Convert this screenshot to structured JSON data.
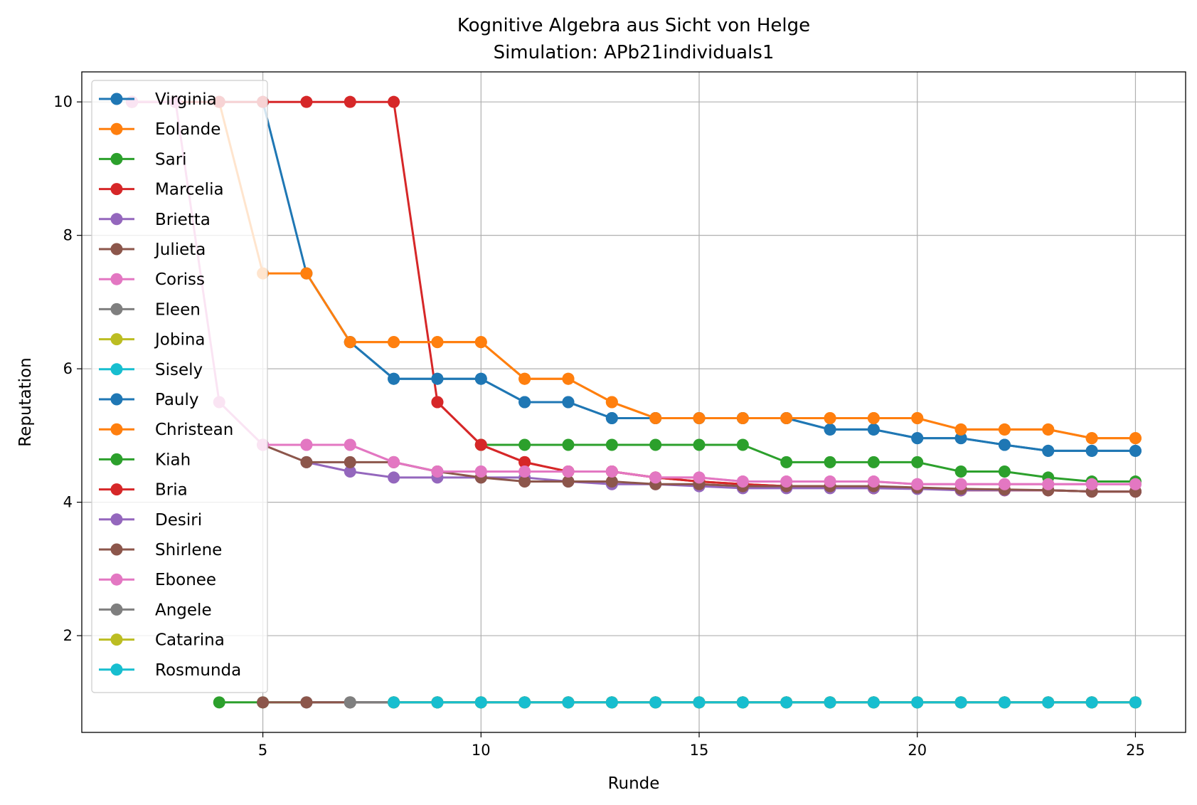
{
  "chart_data": {
    "type": "line",
    "title": "Kognitive Algebra aus Sicht von Helge",
    "subtitle": "Simulation: APb21individuals1",
    "xlabel": "Runde",
    "ylabel": "Reputation",
    "xlim": [
      0.85,
      26.15
    ],
    "ylim": [
      0.55,
      10.45
    ],
    "xticks": [
      5,
      10,
      15,
      20,
      25
    ],
    "yticks": [
      2,
      4,
      6,
      8,
      10
    ],
    "grid": true,
    "legend_position": "upper-left",
    "series": [
      {
        "name": "Virginia",
        "color": "#1f77b4",
        "x": [
          2,
          3,
          4,
          5,
          6,
          7,
          8,
          9,
          10,
          11,
          12,
          13,
          14,
          15,
          16,
          17,
          18,
          19,
          20,
          21,
          22,
          23,
          24,
          25
        ],
        "y": [
          10,
          10,
          10,
          10,
          7.43,
          6.4,
          5.85,
          5.85,
          5.85,
          5.5,
          5.5,
          5.26,
          5.26,
          5.26,
          5.26,
          5.26,
          5.09,
          5.09,
          4.96,
          4.96,
          4.86,
          4.77,
          4.77,
          4.77
        ]
      },
      {
        "name": "Eolande",
        "color": "#ff7f0e",
        "x": [
          2,
          3,
          4,
          5,
          6,
          7,
          8,
          9,
          10,
          11,
          12,
          13,
          14,
          15,
          16,
          17,
          18,
          19,
          20,
          21,
          22,
          23,
          24,
          25
        ],
        "y": [
          10,
          10,
          10,
          7.43,
          7.43,
          6.4,
          6.4,
          6.4,
          6.4,
          5.85,
          5.85,
          5.5,
          5.26,
          5.26,
          5.26,
          5.26,
          5.26,
          5.26,
          5.26,
          5.09,
          5.09,
          5.09,
          4.96,
          4.96
        ]
      },
      {
        "name": "Sari",
        "color": "#2ca02c",
        "x": [
          4,
          5,
          6,
          7,
          8,
          9,
          10,
          11,
          12,
          13,
          14,
          15,
          16,
          17,
          18,
          19,
          20,
          21,
          22,
          23,
          24,
          25
        ],
        "y": [
          1,
          1,
          1,
          1,
          1,
          1,
          1,
          1,
          1,
          1,
          1,
          1,
          1,
          1,
          1,
          1,
          1,
          1,
          1,
          1,
          1,
          1
        ]
      },
      {
        "name": "Marcelia",
        "color": "#d62728",
        "x": [
          2,
          3,
          4,
          5,
          6,
          7,
          8,
          9,
          10,
          11,
          12,
          13,
          14,
          15,
          16,
          17,
          18,
          19,
          20,
          21,
          22,
          23,
          24,
          25
        ],
        "y": [
          10,
          10,
          10,
          10,
          10,
          10,
          10,
          5.5,
          4.86,
          4.6,
          4.46,
          4.46,
          4.37,
          4.31,
          4.27,
          4.24,
          4.24,
          4.21,
          4.21,
          4.18,
          4.18,
          4.18,
          4.16,
          4.16
        ]
      },
      {
        "name": "Brietta",
        "color": "#9467bd",
        "x": [
          6,
          7,
          8,
          9,
          10,
          11,
          12,
          13,
          14,
          15,
          16,
          17,
          18,
          19,
          20,
          21,
          22,
          23,
          24,
          25
        ],
        "y": [
          1,
          1,
          1,
          1,
          1,
          1,
          1,
          1,
          1,
          1,
          1,
          1,
          1,
          1,
          1,
          1,
          1,
          1,
          1,
          1
        ]
      },
      {
        "name": "Julieta",
        "color": "#8c564b",
        "x": [
          5,
          6,
          7,
          8,
          9,
          10,
          11,
          12,
          13,
          14,
          15,
          16,
          17,
          18,
          19,
          20,
          21,
          22,
          23,
          24,
          25
        ],
        "y": [
          1,
          1,
          1,
          1,
          1,
          1,
          1,
          1,
          1,
          1,
          1,
          1,
          1,
          1,
          1,
          1,
          1,
          1,
          1,
          1,
          1
        ]
      },
      {
        "name": "Coriss",
        "color": "#e377c2",
        "x": [
          2,
          3,
          4,
          5,
          6,
          7,
          8,
          9,
          10,
          11,
          12,
          13,
          14,
          15,
          16,
          17,
          18,
          19,
          20,
          21,
          22,
          23,
          24,
          25
        ],
        "y": [
          10,
          10,
          5.5,
          4.86,
          4.86,
          4.86,
          4.6,
          4.46,
          4.46,
          4.46,
          4.46,
          4.46,
          4.37,
          4.37,
          4.31,
          4.31,
          4.31,
          4.31,
          4.27,
          4.27,
          4.27,
          4.27,
          4.27,
          4.27
        ]
      },
      {
        "name": "Eleen",
        "color": "#7f7f7f",
        "x": [
          7,
          8,
          9,
          10,
          11,
          12,
          13,
          14,
          15,
          16,
          17,
          18,
          19,
          20,
          21,
          22,
          23,
          24,
          25
        ],
        "y": [
          1,
          1,
          1,
          1,
          1,
          1,
          1,
          1,
          1,
          1,
          1,
          1,
          1,
          1,
          1,
          1,
          1,
          1,
          1
        ]
      },
      {
        "name": "Jobina",
        "color": "#bcbd22",
        "x": [
          8,
          9,
          10,
          11,
          12,
          13,
          14,
          15,
          16,
          17,
          18,
          19,
          20,
          21,
          22,
          23,
          24,
          25
        ],
        "y": [
          1,
          1,
          1,
          1,
          1,
          1,
          1,
          1,
          1,
          1,
          1,
          1,
          1,
          1,
          1,
          1,
          1,
          1
        ]
      },
      {
        "name": "Sisely",
        "color": "#17becf",
        "x": [
          8,
          9,
          10,
          11,
          12,
          13,
          14,
          15,
          16,
          17,
          18,
          19,
          20,
          21,
          22,
          23,
          24,
          25
        ],
        "y": [
          1,
          1,
          1,
          1,
          1,
          1,
          1,
          1,
          1,
          1,
          1,
          1,
          1,
          1,
          1,
          1,
          1,
          1
        ]
      },
      {
        "name": "Pauly",
        "color": "#1f77b4",
        "x": [
          7,
          8,
          9,
          10,
          11,
          12,
          13,
          14,
          15,
          16,
          17,
          18,
          19,
          20,
          21,
          22,
          23,
          24,
          25
        ],
        "y": [
          6.4,
          5.85,
          5.85,
          5.85,
          5.5,
          5.5,
          5.26,
          5.26,
          5.26,
          5.26,
          5.26,
          5.09,
          5.09,
          4.96,
          4.96,
          4.86,
          4.77,
          4.77,
          4.77
        ]
      },
      {
        "name": "Christean",
        "color": "#ff7f0e",
        "x": [
          7,
          8,
          9,
          10,
          11,
          12,
          13,
          14,
          15,
          16,
          17,
          18,
          19,
          20,
          21,
          22,
          23,
          24,
          25
        ],
        "y": [
          6.4,
          6.4,
          6.4,
          6.4,
          5.85,
          5.85,
          5.5,
          5.26,
          5.26,
          5.26,
          5.26,
          5.26,
          5.26,
          5.26,
          5.09,
          5.09,
          5.09,
          4.96,
          4.96
        ]
      },
      {
        "name": "Kiah",
        "color": "#2ca02c",
        "x": [
          10,
          11,
          12,
          13,
          14,
          15,
          16,
          17,
          18,
          19,
          20,
          21,
          22,
          23,
          24,
          25
        ],
        "y": [
          4.86,
          4.86,
          4.86,
          4.86,
          4.86,
          4.86,
          4.86,
          4.6,
          4.6,
          4.6,
          4.6,
          4.46,
          4.46,
          4.37,
          4.31,
          4.31
        ]
      },
      {
        "name": "Bria",
        "color": "#d62728",
        "x": [
          9,
          10,
          11,
          12,
          13,
          14,
          15,
          16,
          17,
          18,
          19,
          20,
          21,
          22,
          23,
          24,
          25
        ],
        "y": [
          5.5,
          4.86,
          4.6,
          4.46,
          4.46,
          4.37,
          4.31,
          4.27,
          4.24,
          4.24,
          4.21,
          4.21,
          4.18,
          4.18,
          4.18,
          4.16,
          4.16
        ]
      },
      {
        "name": "Desiri",
        "color": "#9467bd",
        "x": [
          6,
          7,
          8,
          9,
          10,
          11,
          12,
          13,
          14,
          15,
          16,
          17,
          18,
          19,
          20,
          21,
          22,
          23,
          24,
          25
        ],
        "y": [
          4.6,
          4.46,
          4.37,
          4.37,
          4.37,
          4.37,
          4.31,
          4.27,
          4.27,
          4.24,
          4.21,
          4.21,
          4.21,
          4.21,
          4.2,
          4.18,
          4.18,
          4.18,
          4.16,
          4.16
        ]
      },
      {
        "name": "Shirlene",
        "color": "#8c564b",
        "x": [
          5,
          6,
          7,
          8,
          9,
          10,
          11,
          12,
          13,
          14,
          15,
          16,
          17,
          18,
          19,
          20,
          21,
          22,
          23,
          24,
          25
        ],
        "y": [
          4.86,
          4.6,
          4.6,
          4.6,
          4.46,
          4.37,
          4.31,
          4.31,
          4.31,
          4.27,
          4.27,
          4.24,
          4.24,
          4.24,
          4.24,
          4.22,
          4.2,
          4.19,
          4.18,
          4.16,
          4.16
        ]
      },
      {
        "name": "Ebonee",
        "color": "#e377c2",
        "x": [
          5,
          6,
          7,
          8,
          9,
          10,
          11,
          12,
          13,
          14,
          15,
          16,
          17,
          18,
          19,
          20,
          21,
          22,
          23,
          24,
          25
        ],
        "y": [
          4.86,
          4.86,
          4.86,
          4.6,
          4.46,
          4.46,
          4.46,
          4.46,
          4.46,
          4.37,
          4.37,
          4.31,
          4.31,
          4.31,
          4.31,
          4.27,
          4.27,
          4.27,
          4.27,
          4.27,
          4.27
        ]
      },
      {
        "name": "Angele",
        "color": "#7f7f7f",
        "x": [
          8,
          9,
          10,
          11,
          12,
          13,
          14,
          15,
          16,
          17,
          18,
          19,
          20,
          21,
          22,
          23,
          24,
          25
        ],
        "y": [
          1,
          1,
          1,
          1,
          1,
          1,
          1,
          1,
          1,
          1,
          1,
          1,
          1,
          1,
          1,
          1,
          1,
          1
        ]
      },
      {
        "name": "Catarina",
        "color": "#bcbd22",
        "x": [
          8,
          9,
          10,
          11,
          12,
          13,
          14,
          15,
          16,
          17,
          18,
          19,
          20,
          21,
          22,
          23,
          24,
          25
        ],
        "y": [
          1,
          1,
          1,
          1,
          1,
          1,
          1,
          1,
          1,
          1,
          1,
          1,
          1,
          1,
          1,
          1,
          1,
          1
        ]
      },
      {
        "name": "Rosmunda",
        "color": "#17becf",
        "x": [
          8,
          9,
          10,
          11,
          12,
          13,
          14,
          15,
          16,
          17,
          18,
          19,
          20,
          21,
          22,
          23,
          24,
          25
        ],
        "y": [
          1,
          1,
          1,
          1,
          1,
          1,
          1,
          1,
          1,
          1,
          1,
          1,
          1,
          1,
          1,
          1,
          1,
          1
        ]
      }
    ]
  }
}
